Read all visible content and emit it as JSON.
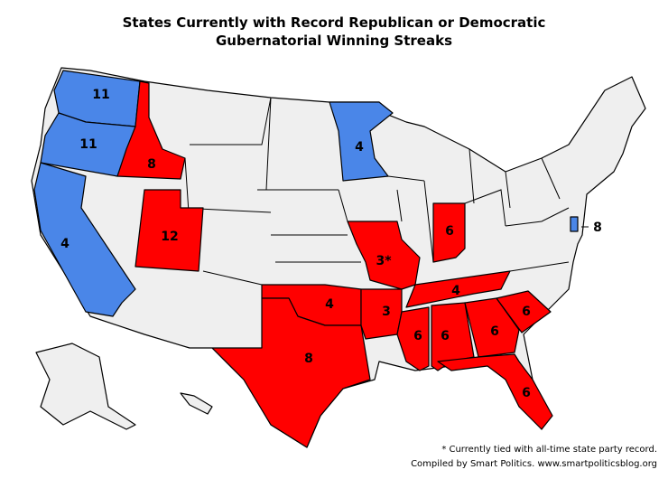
{
  "title": [
    "States Currently with Record Republican or Democratic",
    "Gubernatorial Winning Streaks"
  ],
  "labels": [
    11,
    11,
    4,
    8,
    12,
    4,
    "3*",
    6,
    4,
    8,
    3,
    4,
    6,
    6,
    6,
    6,
    6,
    8
  ],
  "footnote": "* Currently tied with all-time state party record.",
  "credit": "Compiled by Smart Politics. www.smartpoliticsblog.org"
}
